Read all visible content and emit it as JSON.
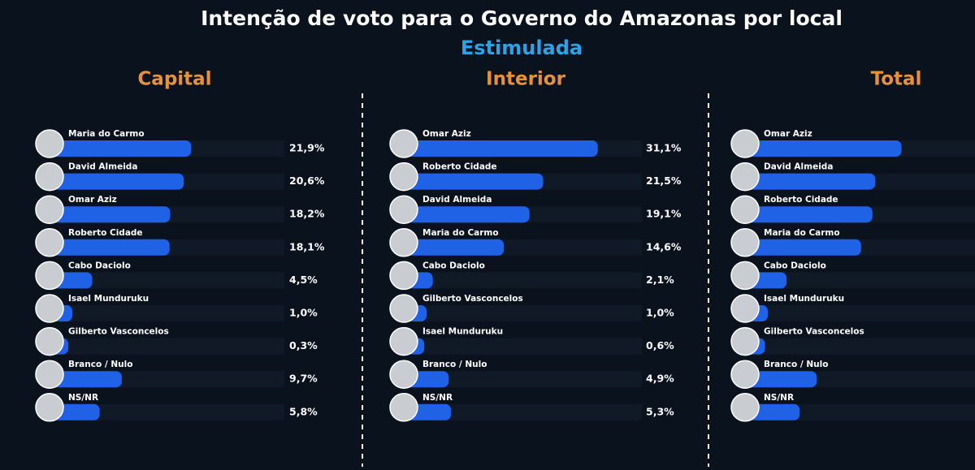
{
  "header": {
    "title": "Intenção de voto para o Governo do Amazonas por local",
    "subtitle": "Estimulada"
  },
  "chart_data": [
    {
      "type": "bar",
      "title": "Capital",
      "color": "#1f62e6",
      "categories": [
        "Maria do Carmo",
        "David Almeida",
        "Omar Aziz",
        "Roberto Cidade",
        "Cabo Daciolo",
        "Isael Munduruku",
        "Gilberto Vasconcelos",
        "Branco / Nulo",
        "NS/NR"
      ],
      "values": [
        21.9,
        20.6,
        18.2,
        18.1,
        4.5,
        1.0,
        0.3,
        9.7,
        5.8
      ],
      "value_labels": [
        "21,9%",
        "20,6%",
        "18,2%",
        "18,1%",
        "4,5%",
        "1,0%",
        "0,3%",
        "9,7%",
        "5,8%"
      ]
    },
    {
      "type": "bar",
      "title": "Interior",
      "color": "#1f62e6",
      "categories": [
        "Omar Aziz",
        "Roberto Cidade",
        "David Almeida",
        "Maria do Carmo",
        "Cabo Daciolo",
        "Gilberto Vasconcelos",
        "Isael Munduruku",
        "Branco / Nulo",
        "NS/NR"
      ],
      "values": [
        31.1,
        21.5,
        19.1,
        14.6,
        2.1,
        1.0,
        0.6,
        4.9,
        5.3
      ],
      "value_labels": [
        "31,1%",
        "21,5%",
        "19,1%",
        "14,6%",
        "2,1%",
        "1,0%",
        "0,6%",
        "4,9%",
        "5,3%"
      ]
    },
    {
      "type": "bar",
      "title": "Total",
      "color": "#1f62e6",
      "categories": [
        "Omar Aziz",
        "David Almeida",
        "Roberto Cidade",
        "Maria do Carmo",
        "Cabo Daciolo",
        "Isael Munduruku",
        "Gilberto Vasconcelos",
        "Branco / Nulo",
        "NS/NR"
      ],
      "values": [
        24.5,
        19.9,
        19.4,
        17.4,
        4.3,
        1.0,
        0.5,
        9.6,
        6.6
      ]
    }
  ]
}
